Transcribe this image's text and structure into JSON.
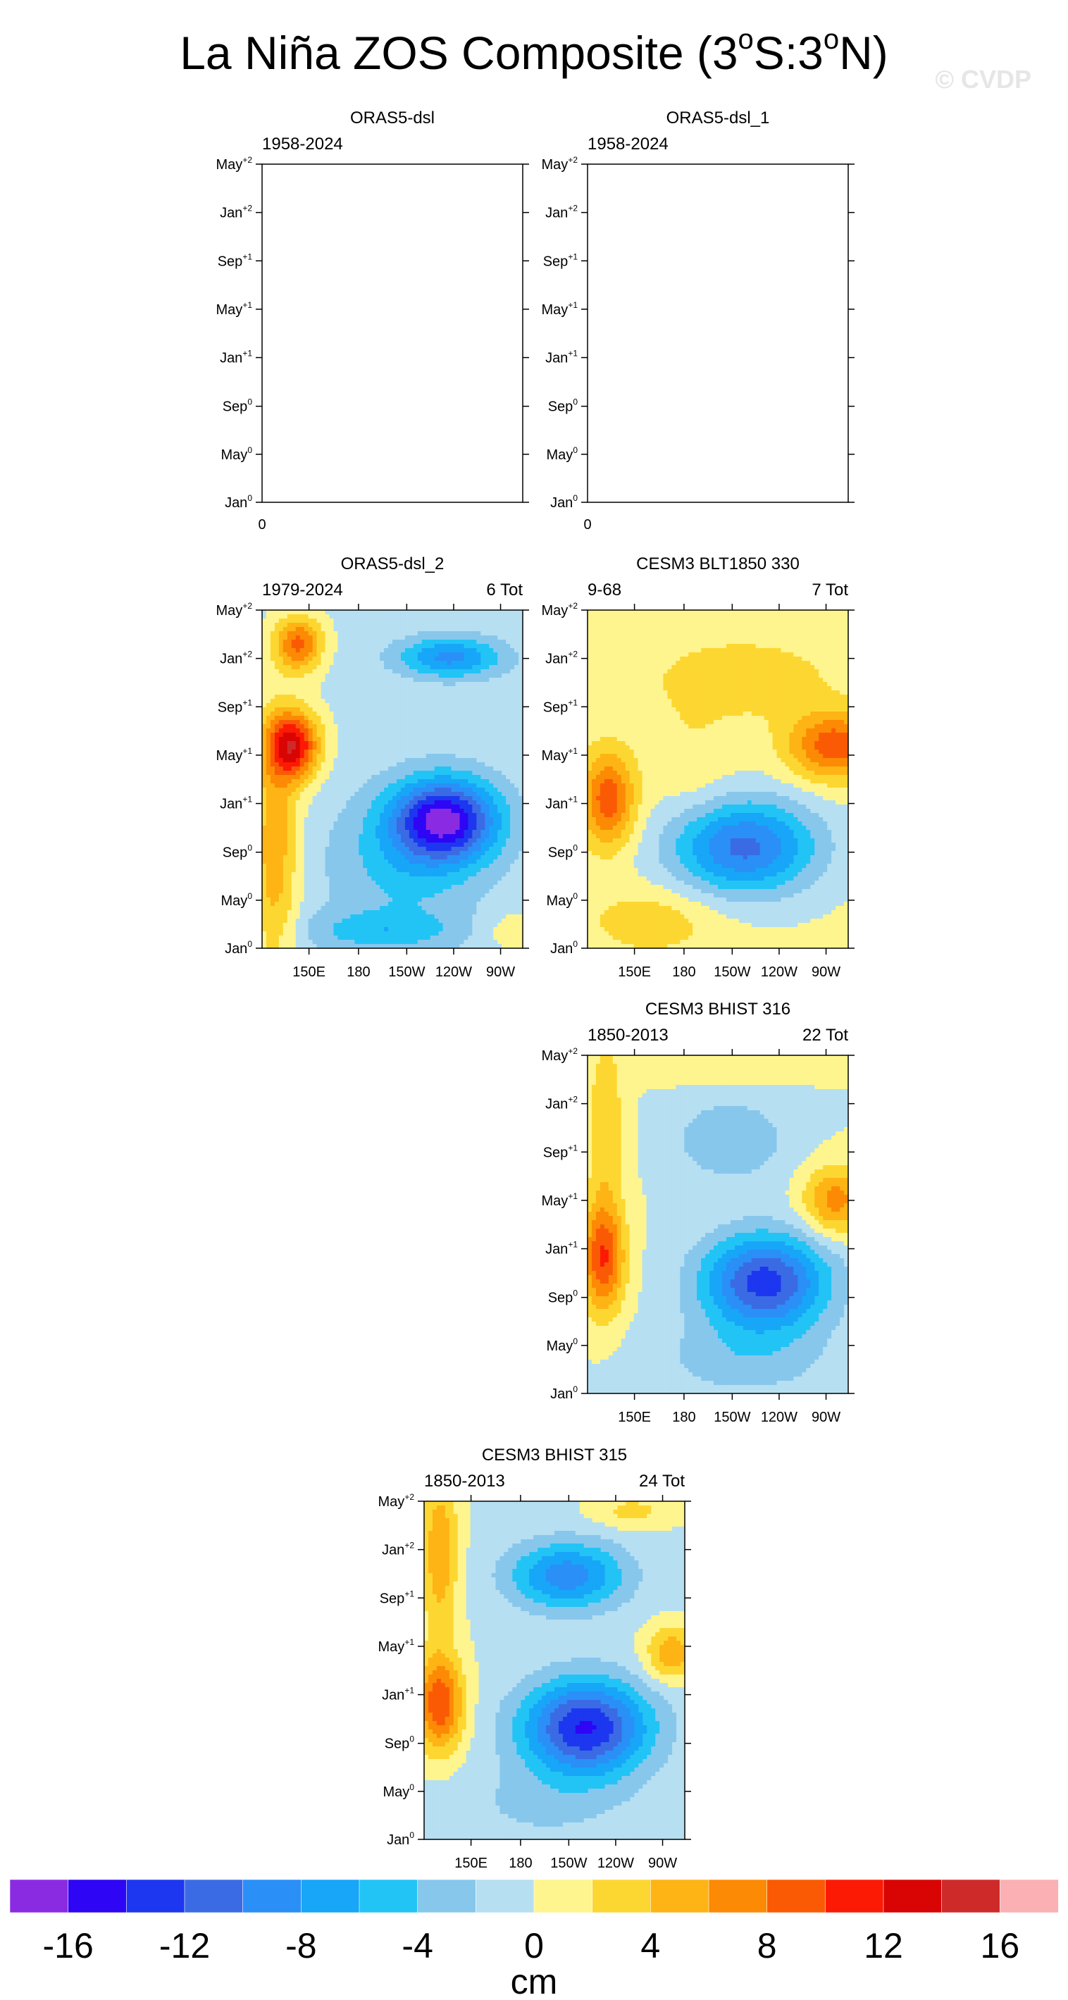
{
  "title": {
    "prefix": "La Niña ZOS Composite (3",
    "deg1": "o",
    "middle": "S:3",
    "deg2": "o",
    "suffix": "N)"
  },
  "watermark": "© CVDP",
  "y_tick_labels": [
    {
      "base": "Jan",
      "sup": "0"
    },
    {
      "base": "May",
      "sup": "0"
    },
    {
      "base": "Sep",
      "sup": "0"
    },
    {
      "base": "Jan",
      "sup": "+1"
    },
    {
      "base": "May",
      "sup": "+1"
    },
    {
      "base": "Sep",
      "sup": "+1"
    },
    {
      "base": "Jan",
      "sup": "+2"
    },
    {
      "base": "May",
      "sup": "+2"
    }
  ],
  "x_tick_labels": [
    "150E",
    "180",
    "150W",
    "120W",
    "90W"
  ],
  "colorbar": {
    "units": "cm",
    "levels": [
      -16,
      -12,
      -8,
      -4,
      0,
      4,
      8,
      12,
      16
    ],
    "colors": [
      "#8a2be2",
      "#2e05f5",
      "#1d37f0",
      "#3b6be4",
      "#2a8ff7",
      "#17a6f8",
      "#22c4f6",
      "#88c7ec",
      "#b6dff2",
      "#fff58f",
      "#fdd731",
      "#fdb414",
      "#fc8a04",
      "#fb5a04",
      "#fc1a04",
      "#d90404",
      "#cf2a2a",
      "#fbb0b4"
    ]
  },
  "panels": [
    {
      "title": "ORAS5-dsl",
      "left": "1958-2024",
      "right": "",
      "no_data_label": "0",
      "has_data": false
    },
    {
      "title": "ORAS5-dsl_1",
      "left": "1958-2024",
      "right": "",
      "no_data_label": "0",
      "has_data": false
    },
    {
      "title": "ORAS5-dsl_2",
      "left": "1979-2024",
      "right": "6 Tot",
      "has_data": true
    },
    {
      "title": "CESM3 BLT1850 330",
      "left": "9-68",
      "right": "7 Tot",
      "has_data": true
    },
    {
      "title": "CESM3 BHIST 316",
      "left": "1850-2013",
      "right": "22 Tot",
      "has_data": true
    },
    {
      "title": "CESM3 BHIST 315",
      "left": "1850-2013",
      "right": "24 Tot",
      "has_data": true
    }
  ],
  "chart_data": {
    "type": "heatmap",
    "title": "La Niña ZOS Composite (3oS:3oN)",
    "x_axis": {
      "ticks": [
        "150E",
        "180",
        "150W",
        "120W",
        "90W"
      ]
    },
    "y_axis": {
      "ticks": [
        "Jan0",
        "May0",
        "Sep0",
        "Jan+1",
        "May+1",
        "Sep+1",
        "Jan+2",
        "May+2"
      ]
    },
    "colorbar": {
      "units": "cm",
      "range": [
        -18,
        18
      ],
      "interval": 2
    },
    "panels": [
      "ORAS5-dsl",
      "ORAS5-dsl_1",
      "ORAS5-dsl_2",
      "CESM3 BLT1850 330",
      "CESM3 BHIST 316",
      "CESM3 BHIST 315"
    ]
  }
}
